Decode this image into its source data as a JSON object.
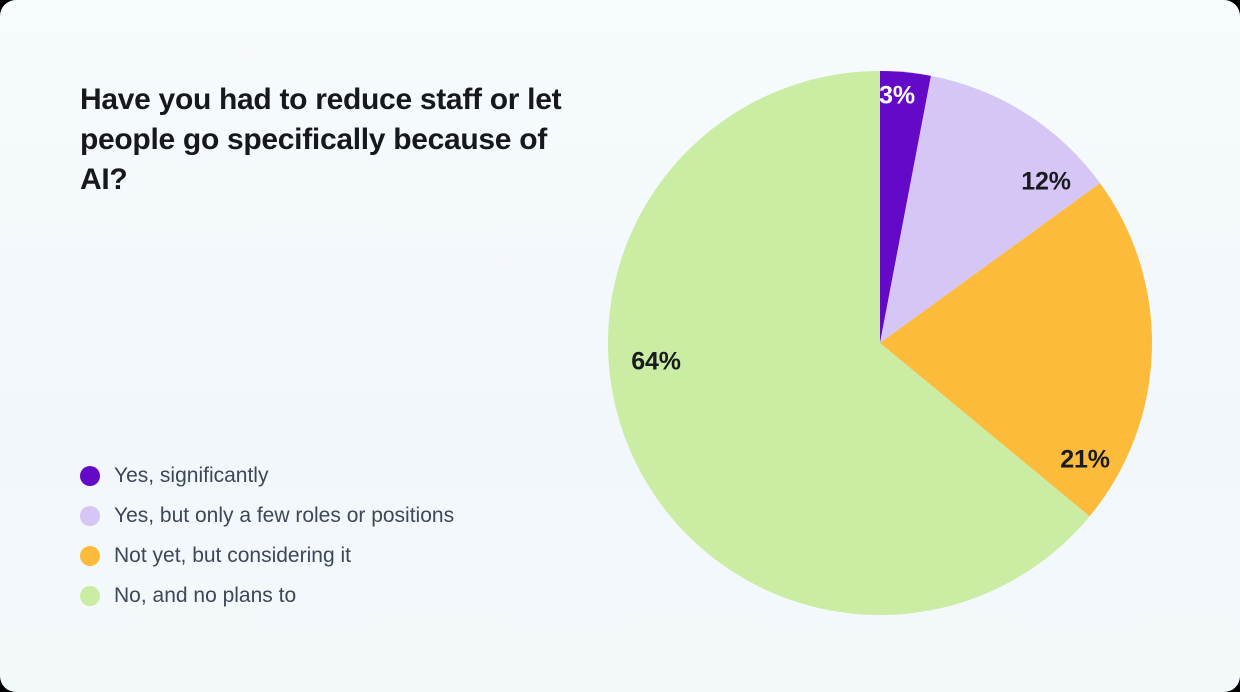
{
  "page": {
    "card_background": "#f3f8fb",
    "outer_background": "#000000",
    "title_color": "#16181d",
    "legend_text_color": "#3f4757"
  },
  "chart_data": {
    "type": "pie",
    "title": "Have you had to reduce staff or let people go specifically because of AI?",
    "start_angle_deg": 0,
    "direction": "clockwise",
    "legend_position": "bottom-left",
    "total": 100,
    "slices": [
      {
        "label": "Yes, significantly",
        "value": 3,
        "display": "3%",
        "color": "#6409c8",
        "label_color": "#ffffff"
      },
      {
        "label": "Yes, but only a few roles or positions",
        "value": 12,
        "display": "12%",
        "color": "#d5c6f5",
        "label_color": "#191b20"
      },
      {
        "label": "Not yet, but considering it",
        "value": 21,
        "display": "21%",
        "color": "#fcbb3a",
        "label_color": "#191b20"
      },
      {
        "label": "No, and no plans to",
        "value": 64,
        "display": "64%",
        "color": "#cbeca3",
        "label_color": "#191b20"
      }
    ]
  }
}
